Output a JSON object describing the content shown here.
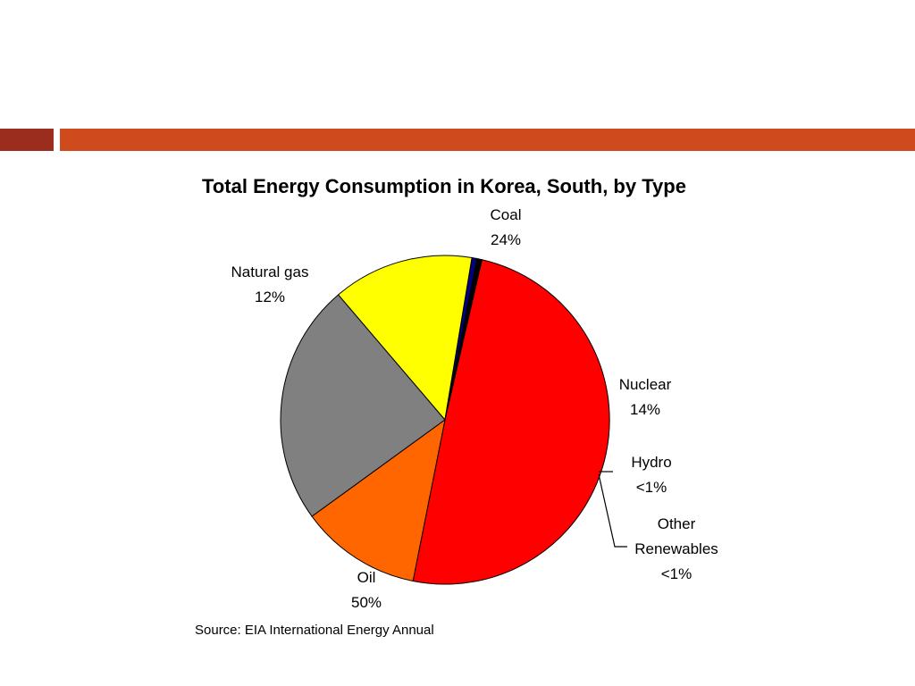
{
  "chart_data": {
    "type": "pie",
    "title": "Total Energy Consumption in Korea, South, by Type",
    "slices": [
      {
        "label_lines": [
          "Coal",
          "24%"
        ],
        "value": 24,
        "color": "#808080"
      },
      {
        "label_lines": [
          "Nuclear",
          "14%"
        ],
        "value": 14,
        "color": "#ffff00"
      },
      {
        "label_lines": [
          "Hydro",
          "<1%"
        ],
        "value": 0.5,
        "color": "#000080"
      },
      {
        "label_lines": [
          "Other",
          "Renewables",
          "<1%"
        ],
        "value": 0.5,
        "color": "#000000"
      },
      {
        "label_lines": [
          "Oil",
          "50%"
        ],
        "value": 50,
        "color": "#ff0000"
      },
      {
        "label_lines": [
          "Natural gas",
          "12%"
        ],
        "value": 12,
        "color": "#ff6600"
      }
    ],
    "source": "Source: EIA International Energy Annual"
  },
  "theme": {
    "bar_left_color": "#9b2d1f",
    "bar_right_color": "#cf4a1c"
  }
}
